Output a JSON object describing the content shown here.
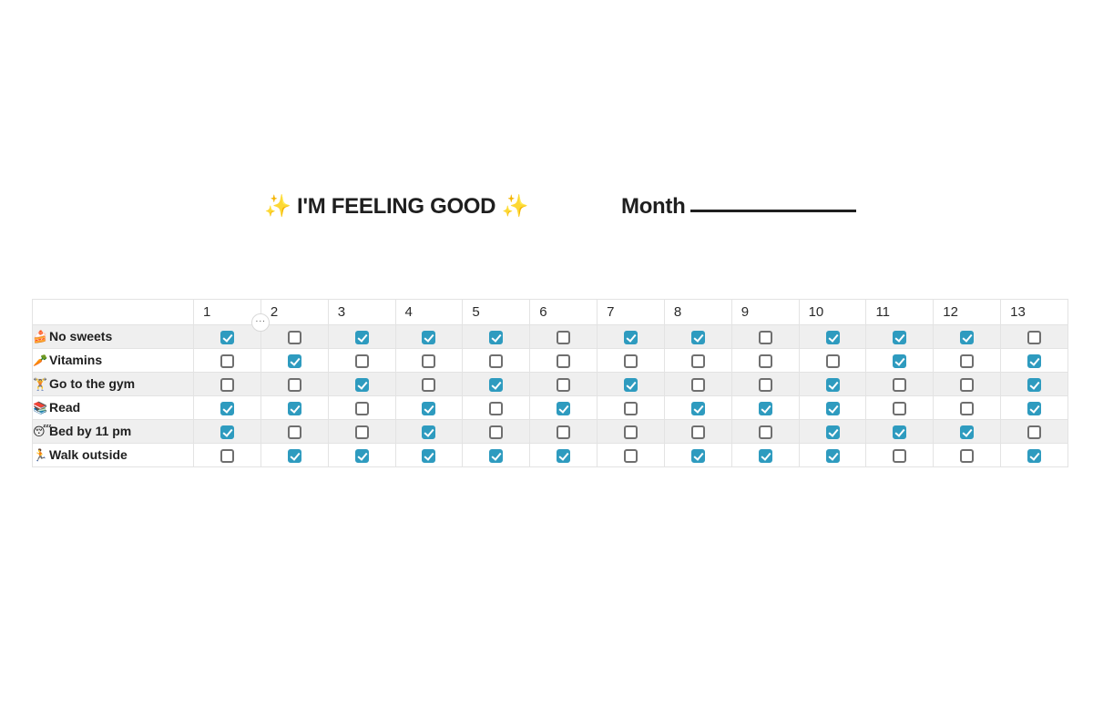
{
  "header": {
    "sparkle_left": "✨",
    "title": "I'M FEELING GOOD",
    "sparkle_right": "✨",
    "month_label": "Month"
  },
  "table": {
    "days": [
      "1",
      "2",
      "3",
      "4",
      "5",
      "6",
      "7",
      "8",
      "9",
      "10",
      "11",
      "12",
      "13"
    ],
    "habits": [
      {
        "icon": "🍰",
        "icon_name": "cake-icon",
        "label": "No sweets",
        "checks": [
          true,
          false,
          true,
          true,
          true,
          false,
          true,
          true,
          false,
          true,
          true,
          true,
          false
        ]
      },
      {
        "icon": "🥕",
        "icon_name": "carrot-icon",
        "label": "Vitamins",
        "checks": [
          false,
          true,
          false,
          false,
          false,
          false,
          false,
          false,
          false,
          false,
          true,
          false,
          true
        ]
      },
      {
        "icon": "🏋",
        "icon_name": "weightlifting-icon",
        "label": "Go to the gym",
        "checks": [
          false,
          false,
          true,
          false,
          true,
          false,
          true,
          false,
          false,
          true,
          false,
          false,
          true
        ]
      },
      {
        "icon": "📚",
        "icon_name": "books-icon",
        "label": "Read",
        "checks": [
          true,
          true,
          false,
          true,
          false,
          true,
          false,
          true,
          true,
          true,
          false,
          false,
          true
        ]
      },
      {
        "icon": "😴",
        "icon_name": "sleeping-face-icon",
        "label": "Bed by 11 pm",
        "checks": [
          true,
          false,
          false,
          true,
          false,
          false,
          false,
          false,
          false,
          true,
          true,
          true,
          false
        ]
      },
      {
        "icon": "🏃",
        "icon_name": "running-person-icon",
        "label": "Walk outside",
        "checks": [
          false,
          true,
          true,
          true,
          true,
          true,
          false,
          true,
          true,
          true,
          false,
          false,
          true
        ]
      }
    ]
  },
  "colors": {
    "checked": "#2e9bbf",
    "row_shade": "#efefef",
    "sparkle": "#e8b84a"
  },
  "more_handle": "···"
}
